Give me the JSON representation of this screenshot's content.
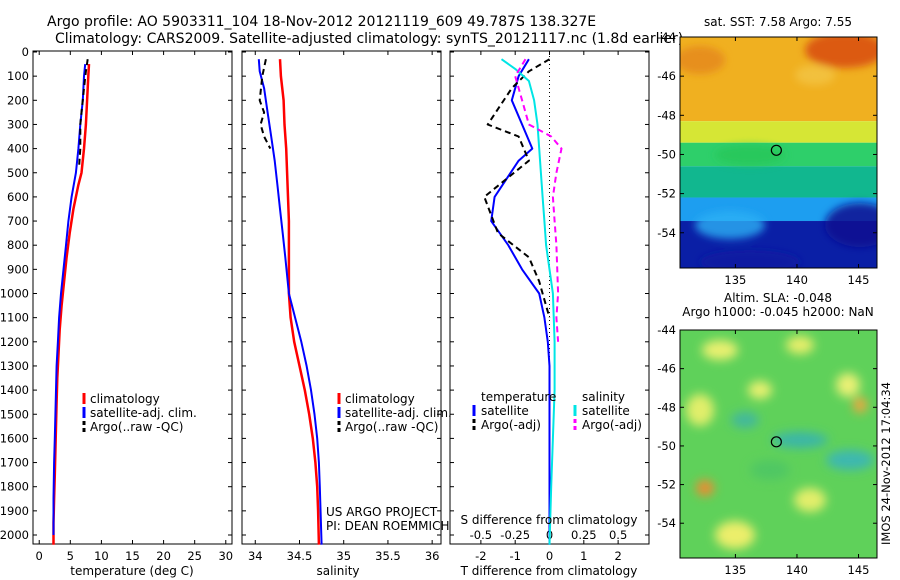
{
  "header": {
    "line1": "Argo profile: AO 5903311_104 18-Nov-2012 20121119_609 49.787S 138.327E",
    "line2": "Climatology: CARS2009. Satellite-adjusted climatology: synTS_20121117.nc (1.8d earlier)"
  },
  "footer": {
    "project_line1": "US ARGO PROJECT",
    "project_line2": "PI: DEAN ROEMMICH",
    "side_stamp": "IMOS 24-Nov-2012 17:04:34"
  },
  "colors": {
    "climatology": "#ff0000",
    "satellite": "#0000ff",
    "argo": "#000000",
    "salinity_sat": "#00e5e5",
    "salinity_argo": "#ff00ff"
  },
  "chart_data": [
    {
      "type": "line",
      "id": "temperature",
      "xlabel": "temperature (deg C)",
      "ylabel": "",
      "xlim": [
        -1,
        31
      ],
      "ylim": [
        2050,
        0
      ],
      "y_reversed": true,
      "xticks": [
        0,
        5,
        10,
        15,
        20,
        25,
        30
      ],
      "xticklabels": [
        "0",
        "5",
        "10",
        "15",
        "20",
        "25",
        "30"
      ],
      "yticks": [
        0,
        100,
        200,
        300,
        400,
        500,
        600,
        700,
        800,
        900,
        1000,
        1100,
        1200,
        1300,
        1400,
        1500,
        1600,
        1700,
        1800,
        1900,
        2000
      ],
      "yticklabels": [
        "0",
        "100",
        "200",
        "300",
        "400",
        "500",
        "600",
        "700",
        "800",
        "900",
        "1000",
        "1100",
        "1200",
        "1300",
        "1400",
        "1500",
        "1600",
        "1700",
        "1800",
        "1900",
        "2000"
      ],
      "legend": {
        "placement": "lower-right",
        "entries": [
          {
            "label": "climatology",
            "color": "#ff0000",
            "dash": false
          },
          {
            "label": "satellite-adj. clim.",
            "color": "#0000ff",
            "dash": false
          },
          {
            "label": "Argo(..raw -QC)",
            "color": "#000000",
            "dash": true
          }
        ]
      },
      "series": [
        {
          "name": "climatology",
          "color": "#ff0000",
          "dash": false,
          "width": 2.5,
          "x": [
            8.0,
            7.9,
            7.7,
            7.5,
            7.2,
            6.8,
            6.3,
            5.5,
            4.9,
            4.4,
            4.0,
            3.6,
            3.3,
            3.1,
            2.9,
            2.8,
            2.7,
            2.6,
            2.5,
            2.4,
            2.3,
            2.3
          ],
          "y": [
            50,
            100,
            200,
            300,
            400,
            500,
            550,
            650,
            750,
            850,
            950,
            1050,
            1150,
            1250,
            1350,
            1450,
            1550,
            1650,
            1750,
            1850,
            1950,
            2040
          ]
        },
        {
          "name": "satellite-adj. clim.",
          "color": "#0000ff",
          "dash": false,
          "width": 2,
          "x": [
            7.4,
            7.2,
            7.0,
            6.6,
            6.3,
            5.9,
            5.2,
            4.7,
            4.3,
            3.9,
            3.5,
            3.2,
            3.0,
            2.8,
            2.7,
            2.6,
            2.5,
            2.4,
            2.3,
            2.3
          ],
          "y": [
            50,
            100,
            200,
            300,
            400,
            500,
            600,
            700,
            800,
            900,
            1000,
            1100,
            1200,
            1300,
            1400,
            1500,
            1600,
            1700,
            1850,
            2000
          ]
        },
        {
          "name": "Argo(..raw -QC)",
          "color": "#000000",
          "dash": true,
          "width": 2,
          "x": [
            7.8,
            7.5,
            7.2,
            6.8,
            6.6,
            6.6,
            6.4
          ],
          "y": [
            30,
            80,
            150,
            250,
            300,
            400,
            480
          ]
        }
      ]
    },
    {
      "type": "line",
      "id": "salinity",
      "xlabel": "salinity",
      "ylabel": "",
      "xlim": [
        33.85,
        36.1
      ],
      "ylim": [
        2050,
        0
      ],
      "y_reversed": true,
      "xticks": [
        34,
        34.5,
        35,
        35.5,
        36
      ],
      "xticklabels": [
        "34",
        "34.5",
        "35",
        "35.5",
        "36"
      ],
      "legend": {
        "placement": "lower-right",
        "entries": [
          {
            "label": "climatology",
            "color": "#ff0000",
            "dash": false
          },
          {
            "label": "satellite-adj. clim.",
            "color": "#0000ff",
            "dash": false
          },
          {
            "label": "Argo(..raw -QC)",
            "color": "#000000",
            "dash": true
          }
        ]
      },
      "series": [
        {
          "name": "climatology",
          "color": "#ff0000",
          "dash": false,
          "width": 2.5,
          "x": [
            34.28,
            34.29,
            34.32,
            34.33,
            34.35,
            34.36,
            34.37,
            34.38,
            34.38,
            34.38,
            34.38,
            34.4,
            34.44,
            34.5,
            34.56,
            34.61,
            34.65,
            34.68,
            34.7,
            34.71,
            34.72
          ],
          "y": [
            30,
            100,
            200,
            300,
            400,
            500,
            600,
            700,
            800,
            900,
            1000,
            1100,
            1200,
            1300,
            1400,
            1500,
            1600,
            1700,
            1800,
            1900,
            2040
          ]
        },
        {
          "name": "satellite-adj. clim.",
          "color": "#0000ff",
          "dash": false,
          "width": 2,
          "x": [
            34.04,
            34.05,
            34.1,
            34.14,
            34.18,
            34.22,
            34.25,
            34.28,
            34.31,
            34.34,
            34.38,
            34.45,
            34.52,
            34.58,
            34.63,
            34.67,
            34.7,
            34.72,
            34.73,
            34.75
          ],
          "y": [
            30,
            80,
            150,
            250,
            350,
            450,
            550,
            650,
            750,
            850,
            1000,
            1100,
            1200,
            1300,
            1400,
            1500,
            1600,
            1700,
            1800,
            2040
          ]
        },
        {
          "name": "Argo(..raw -QC)",
          "color": "#000000",
          "dash": true,
          "width": 2,
          "x": [
            34.12,
            34.08,
            34.05,
            34.1,
            34.06,
            34.1,
            34.17
          ],
          "y": [
            30,
            100,
            200,
            250,
            300,
            350,
            400
          ]
        }
      ]
    },
    {
      "type": "line",
      "id": "differences",
      "xlabel": "T difference from climatology",
      "xlabel_top": "S difference from climatology",
      "xlim": [
        -2.9,
        2.9
      ],
      "ylim": [
        2050,
        0
      ],
      "y_reversed": true,
      "xticks": [
        -2,
        -1,
        0,
        1,
        2
      ],
      "xticklabels": [
        "-2",
        "-1",
        "0",
        "1",
        "2"
      ],
      "s_ticklabels": [
        "-0.5",
        "-0.25",
        "0",
        "0.25",
        "0.5"
      ],
      "zero_line": true,
      "legend": {
        "placement": "lower-right",
        "groups": [
          {
            "title": "temperature",
            "entries": [
              {
                "label": "satellite",
                "color": "#0000ff",
                "dash": false
              },
              {
                "label": "Argo(-adj)",
                "color": "#000000",
                "dash": true
              }
            ]
          },
          {
            "title": "salinity",
            "entries": [
              {
                "label": "satellite",
                "color": "#00e5e5",
                "dash": false
              },
              {
                "label": "Argo(-adj)",
                "color": "#ff00ff",
                "dash": true
              }
            ]
          }
        ]
      },
      "series": [
        {
          "name": "T satellite",
          "color": "#0000ff",
          "dash": false,
          "width": 2,
          "x": [
            -0.6,
            -0.9,
            -1.1,
            -0.8,
            -0.5,
            -0.9,
            -1.6,
            -1.7,
            -1.2,
            -0.8,
            -0.3,
            -0.15,
            -0.05,
            0.0,
            0.0,
            0.0,
            0.0,
            0.0
          ],
          "y": [
            30,
            100,
            200,
            300,
            400,
            450,
            600,
            700,
            800,
            900,
            1000,
            1100,
            1200,
            1300,
            1500,
            1700,
            1900,
            2040
          ]
        },
        {
          "name": "T Argo(-adj)",
          "color": "#000000",
          "dash": true,
          "width": 2,
          "x": [
            0.0,
            -0.6,
            -1.1,
            -1.8,
            -0.9,
            -0.6,
            -1.9,
            -1.5,
            -0.6,
            -0.3,
            -0.2,
            0.0
          ],
          "y": [
            30,
            80,
            150,
            300,
            350,
            450,
            600,
            750,
            850,
            950,
            1000,
            1100
          ]
        },
        {
          "name": "S satellite",
          "color": "#00e5e5",
          "dash": false,
          "width": 2,
          "x": [
            -1.4,
            -1.0,
            -0.6,
            -0.45,
            -0.35,
            -0.3,
            -0.25,
            -0.2,
            -0.15,
            -0.1,
            0.0,
            0.1,
            0.15,
            0.15,
            0.1,
            0.05,
            0.0
          ],
          "y": [
            30,
            70,
            120,
            200,
            300,
            400,
            500,
            600,
            700,
            800,
            900,
            1000,
            1200,
            1400,
            1600,
            1800,
            2040
          ]
        },
        {
          "name": "S Argo(-adj)",
          "color": "#ff00ff",
          "dash": true,
          "width": 2,
          "x": [
            -0.7,
            -1.0,
            -0.8,
            -0.6,
            0.05,
            0.35,
            0.2,
            0.1,
            0.15,
            0.2,
            0.25,
            0.2,
            0.25
          ],
          "y": [
            30,
            100,
            200,
            300,
            350,
            400,
            500,
            600,
            700,
            800,
            1000,
            1100,
            1200
          ]
        }
      ]
    },
    {
      "type": "heatmap",
      "id": "sst_map",
      "title": "sat. SST: 7.58 Argo: 7.55",
      "xlim": [
        130.5,
        146.5
      ],
      "ylim": [
        -55.8,
        -44
      ],
      "xticks": [
        135,
        140,
        145
      ],
      "xticklabels": [
        "135",
        "140",
        "145"
      ],
      "yticks": [
        -44,
        -46,
        -48,
        -50,
        -52,
        -54
      ],
      "yticklabels": [
        "-44",
        "-46",
        "-48",
        "-50",
        "-52",
        "-54"
      ],
      "marker": {
        "lon": 138.327,
        "lat": -49.787
      },
      "bands": [
        {
          "from_lat": -44,
          "to_lat": -48.3,
          "color": "#f0b020"
        },
        {
          "from_lat": -48.3,
          "to_lat": -49.4,
          "color": "#d6e635"
        },
        {
          "from_lat": -49.4,
          "to_lat": -50.6,
          "color": "#2ecf6a"
        },
        {
          "from_lat": -50.6,
          "to_lat": -52.2,
          "color": "#11b78f"
        },
        {
          "from_lat": -52.2,
          "to_lat": -53.4,
          "color": "#1d9ef0"
        },
        {
          "from_lat": -53.4,
          "to_lat": -55.8,
          "color": "#0a1fa6"
        }
      ]
    },
    {
      "type": "heatmap",
      "id": "sla_map",
      "title": "Altim. SLA: -0.048",
      "subtitle": "Argo h1000: -0.045 h2000: NaN",
      "xlim": [
        130.5,
        146.5
      ],
      "ylim": [
        -55.8,
        -44
      ],
      "xticks": [
        135,
        140,
        145
      ],
      "xticklabels": [
        "135",
        "140",
        "145"
      ],
      "yticks": [
        -44,
        -46,
        -48,
        -50,
        -52,
        -54
      ],
      "yticklabels": [
        "-44",
        "-46",
        "-48",
        "-50",
        "-52",
        "-54"
      ],
      "marker": {
        "lon": 138.327,
        "lat": -49.787
      },
      "base_color": "#5fd15a"
    }
  ]
}
